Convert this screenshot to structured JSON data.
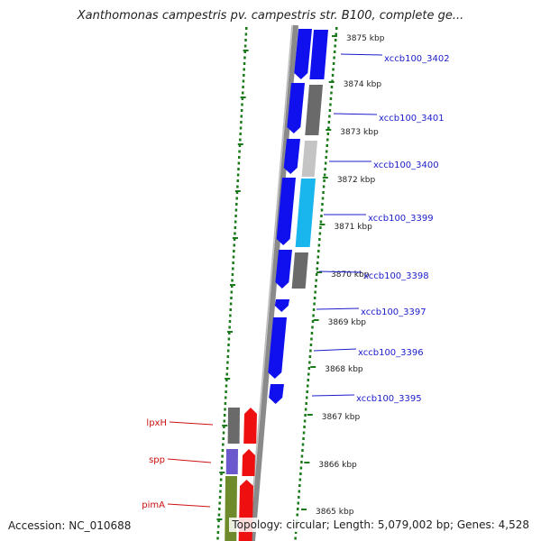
{
  "title": "Xanthomonas campestris pv. campestris str. B100, complete ge...",
  "footer": {
    "accession": "Accession: NC_010688",
    "summary": "Topology: circular; Length: 5,079,002 bp; Genes: 4,528"
  },
  "kbp_ticks": [
    "3875 kbp",
    "3874 kbp",
    "3873 kbp",
    "3872 kbp",
    "3871 kbp",
    "3870 kbp",
    "3869 kbp",
    "3868 kbp",
    "3867 kbp",
    "3866 kbp",
    "3865 kbp"
  ],
  "features_right": [
    "xccb100_3402",
    "xccb100_3401",
    "xccb100_3400",
    "xccb100_3399",
    "xccb100_3398",
    "xccb100_3397",
    "xccb100_3396",
    "xccb100_3395"
  ],
  "features_left": [
    "lpxH",
    "spp",
    "pimA"
  ],
  "colors": {
    "backbone": "#8a8a8a",
    "cds_blue": "#1010ee",
    "cds_grey": "#6a6a6a",
    "cds_lightgrey": "#c4c4c4",
    "cds_cyan": "#19b6ee",
    "cds_red": "#ee1010",
    "cds_purple": "#6a58cc",
    "cds_olive": "#6f8a2a",
    "tick_green": "#1a7a1a",
    "label_blue": "#1c1ccc",
    "label_red": "#cc1111"
  }
}
